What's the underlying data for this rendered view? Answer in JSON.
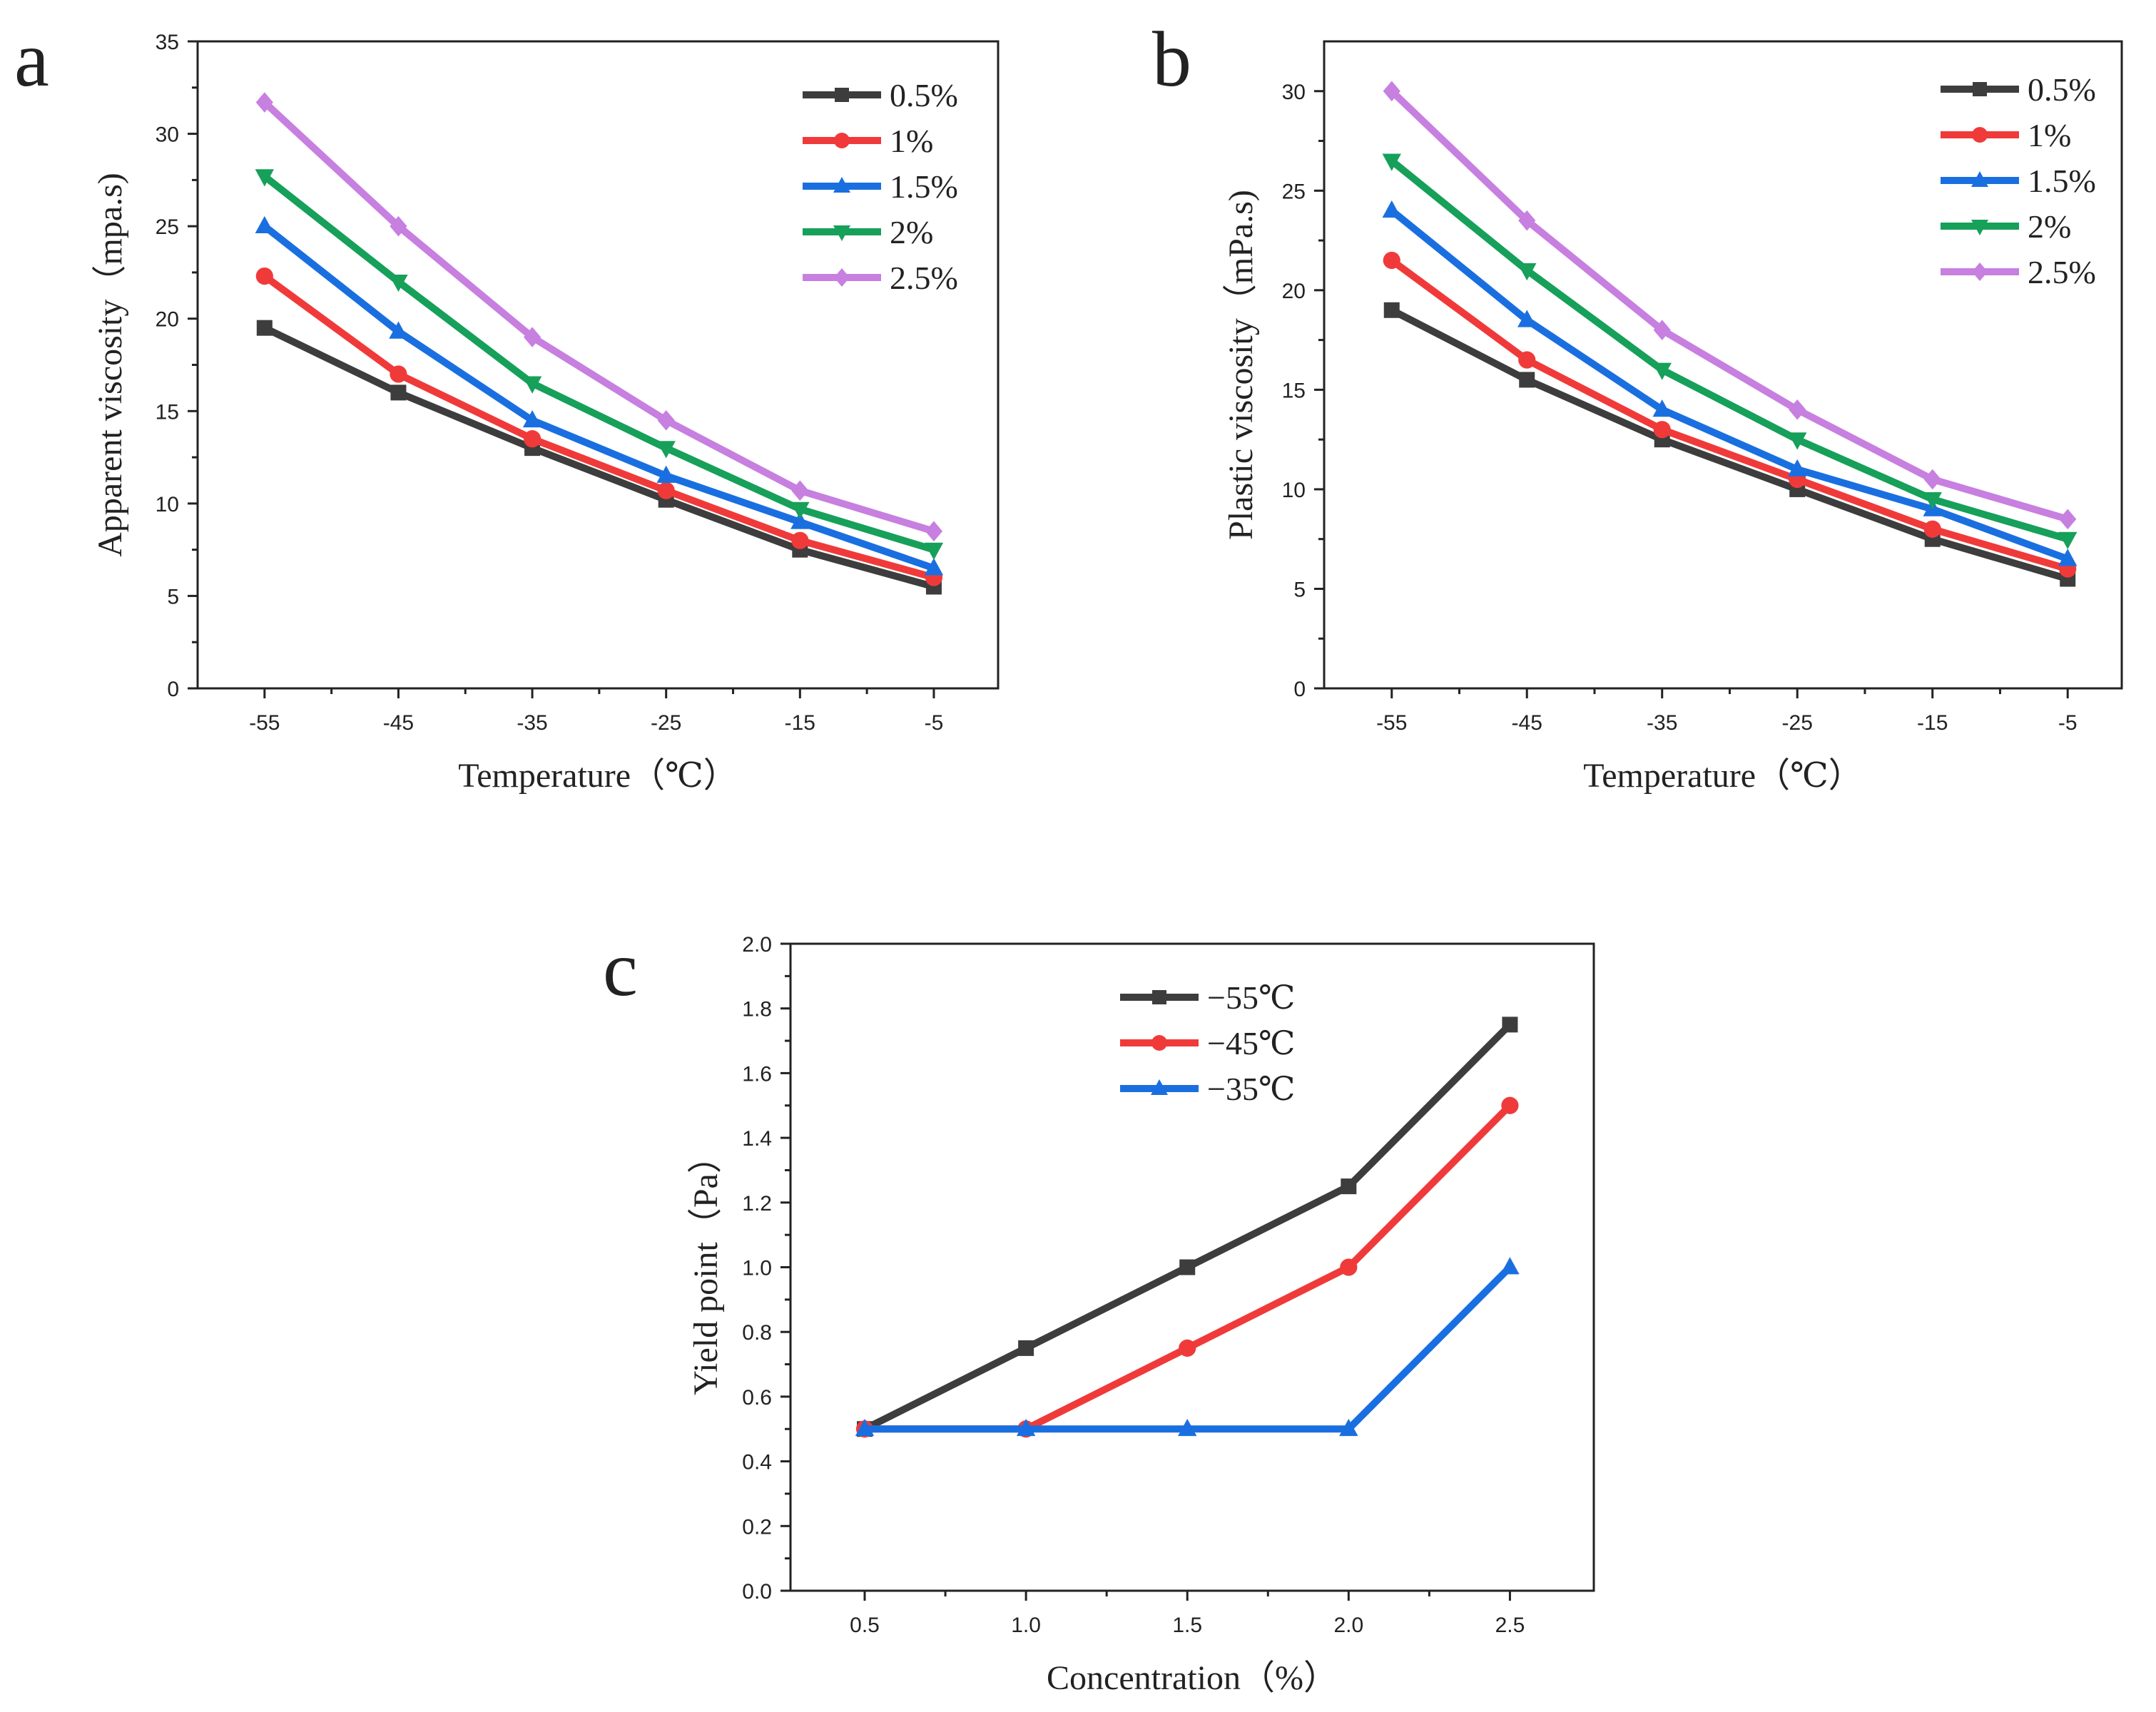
{
  "chart_data": [
    {
      "type": "line",
      "panel_label": "a",
      "xlabel": "Temperature（℃）",
      "ylabel": "Apparent viscosity（mpa.s)",
      "x": [
        -55,
        -45,
        -35,
        -25,
        -15,
        -5
      ],
      "x_tick_labels": [
        "-55",
        "-45",
        "-35",
        "-25",
        "-15",
        "-5"
      ],
      "xlim": [
        -60,
        -0.2
      ],
      "ylim": [
        0,
        35
      ],
      "y_ticks": [
        0,
        5,
        10,
        15,
        20,
        25,
        30,
        35
      ],
      "legend_position": "top-right",
      "series": [
        {
          "name": "0.5%",
          "color": "#3d3d3d",
          "marker": "square",
          "values": [
            19.5,
            16,
            13,
            10.2,
            7.5,
            5.5
          ]
        },
        {
          "name": "1%",
          "color": "#f03a3a",
          "marker": "circle",
          "values": [
            22.3,
            17,
            13.5,
            10.7,
            8,
            6
          ]
        },
        {
          "name": "1.5%",
          "color": "#1a6fe0",
          "marker": "triangle-up",
          "values": [
            25,
            19.3,
            14.5,
            11.5,
            9,
            6.5
          ]
        },
        {
          "name": "2%",
          "color": "#16a05a",
          "marker": "triangle-down",
          "values": [
            27.7,
            22,
            16.5,
            13,
            9.7,
            7.5
          ]
        },
        {
          "name": "2.5%",
          "color": "#c77fe0",
          "marker": "diamond",
          "values": [
            31.7,
            25,
            19,
            14.5,
            10.7,
            8.5
          ]
        }
      ]
    },
    {
      "type": "line",
      "panel_label": "b",
      "xlabel": "Temperature（℃）",
      "ylabel": "Plastic viscosity（mPa.s)",
      "x": [
        -55,
        -45,
        -35,
        -25,
        -15,
        -5
      ],
      "x_tick_labels": [
        "-55",
        "-45",
        "-35",
        "-25",
        "-15",
        "-5"
      ],
      "xlim": [
        -60,
        -1
      ],
      "ylim": [
        0,
        32.5
      ],
      "y_ticks": [
        0,
        5,
        10,
        15,
        20,
        25,
        30
      ],
      "legend_position": "top-right",
      "series": [
        {
          "name": "0.5%",
          "color": "#3d3d3d",
          "marker": "square",
          "values": [
            19,
            15.5,
            12.5,
            10,
            7.5,
            5.5
          ]
        },
        {
          "name": "1%",
          "color": "#f03a3a",
          "marker": "circle",
          "values": [
            21.5,
            16.5,
            13,
            10.5,
            8,
            6
          ]
        },
        {
          "name": "1.5%",
          "color": "#1a6fe0",
          "marker": "triangle-up",
          "values": [
            24,
            18.5,
            14,
            11,
            9,
            6.5
          ]
        },
        {
          "name": "2%",
          "color": "#16a05a",
          "marker": "triangle-down",
          "values": [
            26.5,
            21,
            16,
            12.5,
            9.5,
            7.5
          ]
        },
        {
          "name": "2.5%",
          "color": "#c77fe0",
          "marker": "diamond",
          "values": [
            30,
            23.5,
            18,
            14,
            10.5,
            8.5
          ]
        }
      ]
    },
    {
      "type": "line",
      "panel_label": "c",
      "xlabel": "Concentration（%）",
      "ylabel": "Yield point（Pa）",
      "x": [
        0.5,
        1.0,
        1.5,
        2.0,
        2.5
      ],
      "x_tick_labels": [
        "0.5",
        "1.0",
        "1.5",
        "2.0",
        "2.5"
      ],
      "xlim": [
        0.27,
        2.76
      ],
      "ylim": [
        0,
        2.0
      ],
      "y_ticks": [
        0.0,
        0.2,
        0.4,
        0.6,
        0.8,
        1.0,
        1.2,
        1.4,
        1.6,
        1.8,
        2.0
      ],
      "y_tick_labels": [
        "0.0",
        "0.2",
        "0.4",
        "0.6",
        "0.8",
        "1.0",
        "1.2",
        "1.4",
        "1.6",
        "1.8",
        "2.0"
      ],
      "legend_position": "top-center",
      "series": [
        {
          "name": "−55℃",
          "color": "#3d3d3d",
          "marker": "square",
          "values": [
            0.5,
            0.75,
            1.0,
            1.25,
            1.75
          ]
        },
        {
          "name": "−45℃",
          "color": "#f03a3a",
          "marker": "circle",
          "values": [
            0.5,
            0.5,
            0.75,
            1.0,
            1.5
          ]
        },
        {
          "name": "−35℃",
          "color": "#1a6fe0",
          "marker": "triangle-up",
          "values": [
            0.5,
            0.5,
            0.5,
            0.5,
            1.0
          ]
        }
      ]
    }
  ]
}
